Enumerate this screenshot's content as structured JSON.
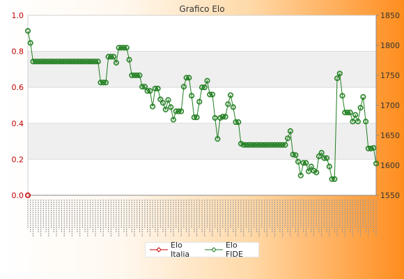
{
  "chart_data": {
    "type": "line",
    "title": "Grafico Elo",
    "left_axis": {
      "range": [
        0.0,
        1.0
      ],
      "ticks": [
        "0.0",
        "0.2",
        "0.4",
        "0.6",
        "0.8",
        "1.0"
      ],
      "color": "#c00000"
    },
    "right_axis": {
      "range": [
        1550,
        1850
      ],
      "ticks": [
        "1550",
        "1600",
        "1650",
        "1700",
        "1750",
        "1800",
        "1850"
      ]
    },
    "grid": true,
    "legend_position": "bottom",
    "series": [
      {
        "name": "Elo Italia",
        "axis": "left",
        "color": "#cc0000",
        "values": [
          0.0
        ]
      },
      {
        "name": "Elo FIDE",
        "axis": "right",
        "color": "#1e7d1e",
        "values": [
          1824,
          1804,
          1773,
          1773,
          1773,
          1773,
          1773,
          1773,
          1773,
          1773,
          1773,
          1773,
          1773,
          1773,
          1773,
          1773,
          1773,
          1773,
          1773,
          1773,
          1773,
          1773,
          1773,
          1773,
          1773,
          1773,
          1773,
          1773,
          1738,
          1738,
          1738,
          1781,
          1781,
          1781,
          1771,
          1796,
          1796,
          1796,
          1796,
          1776,
          1750,
          1750,
          1750,
          1750,
          1731,
          1731,
          1724,
          1724,
          1698,
          1728,
          1728,
          1710,
          1704,
          1693,
          1709,
          1697,
          1676,
          1690,
          1690,
          1690,
          1731,
          1746,
          1746,
          1716,
          1680,
          1680,
          1706,
          1730,
          1730,
          1741,
          1718,
          1718,
          1679,
          1644,
          1679,
          1681,
          1681,
          1702,
          1717,
          1697,
          1672,
          1672,
          1636,
          1634,
          1634,
          1634,
          1634,
          1634,
          1634,
          1634,
          1634,
          1634,
          1634,
          1634,
          1634,
          1634,
          1634,
          1634,
          1634,
          1634,
          1645,
          1657,
          1618,
          1617,
          1606,
          1583,
          1604,
          1604,
          1590,
          1598,
          1591,
          1588,
          1615,
          1621,
          1612,
          1612,
          1598,
          1577,
          1577,
          1745,
          1753,
          1716,
          1688,
          1688,
          1688,
          1673,
          1684,
          1673,
          1696,
          1714,
          1673,
          1628,
          1628,
          1629,
          1603
        ]
      }
    ]
  },
  "legend": {
    "items": [
      "Elo Italia",
      "Elo FIDE"
    ]
  }
}
